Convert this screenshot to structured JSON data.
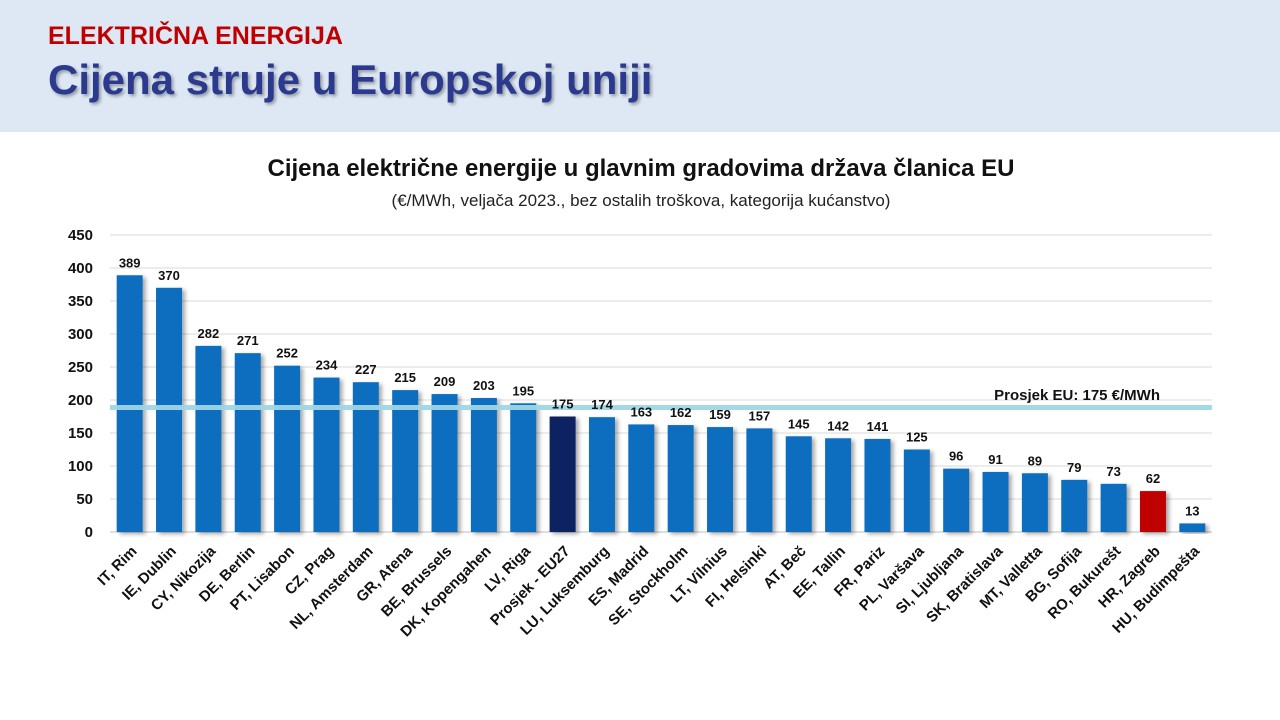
{
  "header": {
    "kicker": "ELEKTRIČNA ENERGIJA",
    "title": "Cijena struje u Europskoj uniji"
  },
  "colors": {
    "header_band": "#dde8f4",
    "kicker": "#c00000",
    "title": "#2b3a8e",
    "bar_default": "#0d6ec0",
    "bar_eu27": "#0b2461",
    "bar_croatia": "#c00000",
    "average_line": "#9fd6e6"
  },
  "chart_data": {
    "type": "bar",
    "title": "Cijena električne energije u glavnim gradovima država članica EU",
    "subtitle": "(€/MWh, veljača 2023., bez ostalih troškova, kategorija kućanstvo)",
    "xlabel": "",
    "ylabel": "",
    "ylim": [
      0,
      450
    ],
    "yticks": [
      0,
      50,
      100,
      150,
      200,
      250,
      300,
      350,
      400,
      450
    ],
    "grid": true,
    "categories": [
      "IT, Rim",
      "IE, Dublin",
      "CY, Nikozija",
      "DE, Berlin",
      "PT, Lisabon",
      "CZ, Prag",
      "NL, Amsterdam",
      "GR, Atena",
      "BE, Brussels",
      "DK, Kopengahen",
      "LV, Riga",
      "Prosjek - EU27",
      "LU, Luksemburg",
      "ES, Madrid",
      "SE, Stockholm",
      "LT, Vilnius",
      "FI, Helsinki",
      "AT, Beč",
      "EE, Tallin",
      "FR, Pariz",
      "PL, Varšava",
      "SI, Ljubljana",
      "SK, Bratislava",
      "MT, Valletta",
      "BG, Sofija",
      "RO, Bukurešt",
      "HR, Zagreb",
      "HU, Budimpešta"
    ],
    "values": [
      389,
      370,
      282,
      271,
      252,
      234,
      227,
      215,
      209,
      203,
      195,
      175,
      174,
      163,
      162,
      159,
      157,
      145,
      142,
      141,
      125,
      96,
      91,
      89,
      79,
      73,
      62,
      13
    ],
    "highlight": {
      "Prosjek - EU27": "#0b2461",
      "HR, Zagreb": "#c00000"
    },
    "average": {
      "value": 175,
      "label": "Prosjek EU: 175 €/MWh"
    }
  }
}
